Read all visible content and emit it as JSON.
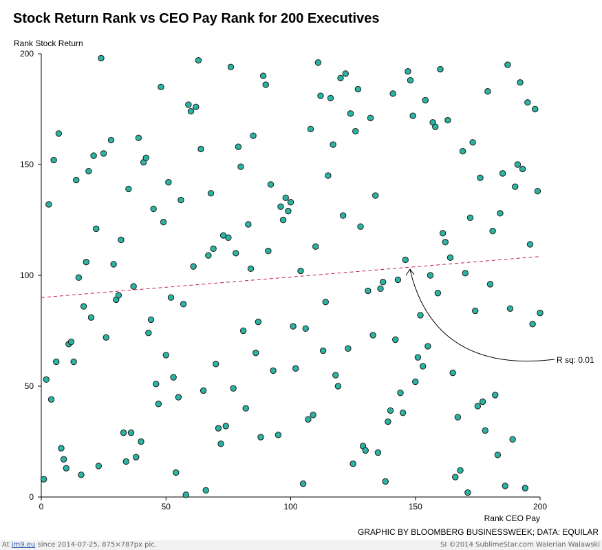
{
  "chart_data": {
    "type": "scatter",
    "title": "Stock Return Rank vs CEO Pay Rank for 200 Executives",
    "xlabel": "Rank CEO Pay",
    "ylabel": "Rank Stock Return",
    "xlim": [
      0,
      200
    ],
    "ylim": [
      0,
      200
    ],
    "xticks": [
      "0",
      "50",
      "100",
      "150",
      "200"
    ],
    "yticks": [
      "0",
      "50",
      "100",
      "150",
      "200"
    ],
    "grid": false,
    "point_color": "#2bb3a3",
    "trendline": {
      "x": [
        0,
        200
      ],
      "y": [
        90,
        108.5
      ],
      "color": "#c2185b",
      "style": "dashed"
    },
    "annotation": {
      "text": "R sq: 0.01",
      "x": 148,
      "y": 103
    },
    "points": [
      [
        1,
        8
      ],
      [
        2,
        53
      ],
      [
        3,
        132
      ],
      [
        4,
        44
      ],
      [
        5,
        152
      ],
      [
        6,
        61
      ],
      [
        7,
        164
      ],
      [
        8,
        22
      ],
      [
        9,
        17
      ],
      [
        10,
        13
      ],
      [
        11,
        69
      ],
      [
        12,
        70
      ],
      [
        13,
        61
      ],
      [
        14,
        143
      ],
      [
        15,
        99
      ],
      [
        16,
        10
      ],
      [
        17,
        86
      ],
      [
        18,
        106
      ],
      [
        19,
        147
      ],
      [
        20,
        81
      ],
      [
        21,
        154
      ],
      [
        22,
        121
      ],
      [
        23,
        14
      ],
      [
        24,
        198
      ],
      [
        25,
        155
      ],
      [
        26,
        72
      ],
      [
        28,
        161
      ],
      [
        29,
        105
      ],
      [
        30,
        89
      ],
      [
        31,
        91
      ],
      [
        32,
        116
      ],
      [
        33,
        29
      ],
      [
        34,
        16
      ],
      [
        35,
        139
      ],
      [
        36,
        29
      ],
      [
        37,
        95
      ],
      [
        38,
        18
      ],
      [
        39,
        162
      ],
      [
        40,
        25
      ],
      [
        41,
        151
      ],
      [
        42,
        153
      ],
      [
        43,
        74
      ],
      [
        44,
        80
      ],
      [
        45,
        130
      ],
      [
        46,
        51
      ],
      [
        47,
        42
      ],
      [
        48,
        185
      ],
      [
        49,
        124
      ],
      [
        50,
        64
      ],
      [
        51,
        142
      ],
      [
        52,
        90
      ],
      [
        53,
        54
      ],
      [
        54,
        11
      ],
      [
        55,
        45
      ],
      [
        56,
        134
      ],
      [
        57,
        87
      ],
      [
        58,
        1
      ],
      [
        59,
        177
      ],
      [
        60,
        174
      ],
      [
        61,
        104
      ],
      [
        62,
        176
      ],
      [
        63,
        197
      ],
      [
        64,
        157
      ],
      [
        65,
        48
      ],
      [
        66,
        3
      ],
      [
        67,
        109
      ],
      [
        68,
        137
      ],
      [
        69,
        112
      ],
      [
        70,
        60
      ],
      [
        71,
        31
      ],
      [
        72,
        24
      ],
      [
        73,
        118
      ],
      [
        74,
        32
      ],
      [
        75,
        117
      ],
      [
        76,
        194
      ],
      [
        77,
        49
      ],
      [
        78,
        110
      ],
      [
        79,
        158
      ],
      [
        80,
        149
      ],
      [
        81,
        75
      ],
      [
        82,
        40
      ],
      [
        83,
        123
      ],
      [
        84,
        103
      ],
      [
        85,
        163
      ],
      [
        86,
        65
      ],
      [
        87,
        79
      ],
      [
        88,
        27
      ],
      [
        89,
        190
      ],
      [
        90,
        186
      ],
      [
        91,
        111
      ],
      [
        92,
        141
      ],
      [
        93,
        57
      ],
      [
        95,
        28
      ],
      [
        96,
        131
      ],
      [
        97,
        125
      ],
      [
        98,
        135
      ],
      [
        99,
        129
      ],
      [
        100,
        133
      ],
      [
        101,
        77
      ],
      [
        102,
        58
      ],
      [
        104,
        102
      ],
      [
        105,
        6
      ],
      [
        106,
        76
      ],
      [
        107,
        35
      ],
      [
        108,
        166
      ],
      [
        109,
        37
      ],
      [
        110,
        113
      ],
      [
        111,
        196
      ],
      [
        112,
        181
      ],
      [
        113,
        66
      ],
      [
        114,
        88
      ],
      [
        115,
        145
      ],
      [
        116,
        180
      ],
      [
        117,
        159
      ],
      [
        118,
        55
      ],
      [
        119,
        50
      ],
      [
        120,
        189
      ],
      [
        121,
        127
      ],
      [
        122,
        191
      ],
      [
        123,
        67
      ],
      [
        124,
        173
      ],
      [
        125,
        15
      ],
      [
        126,
        165
      ],
      [
        127,
        184
      ],
      [
        128,
        122
      ],
      [
        129,
        23
      ],
      [
        130,
        21
      ],
      [
        131,
        93
      ],
      [
        132,
        171
      ],
      [
        133,
        73
      ],
      [
        134,
        136
      ],
      [
        135,
        20
      ],
      [
        136,
        94
      ],
      [
        137,
        97
      ],
      [
        138,
        7
      ],
      [
        139,
        34
      ],
      [
        140,
        39
      ],
      [
        141,
        182
      ],
      [
        142,
        71
      ],
      [
        143,
        98
      ],
      [
        144,
        47
      ],
      [
        145,
        38
      ],
      [
        146,
        107
      ],
      [
        147,
        192
      ],
      [
        148,
        188
      ],
      [
        149,
        172
      ],
      [
        150,
        52
      ],
      [
        151,
        63
      ],
      [
        152,
        82
      ],
      [
        153,
        59
      ],
      [
        154,
        179
      ],
      [
        155,
        68
      ],
      [
        156,
        100
      ],
      [
        157,
        169
      ],
      [
        158,
        167
      ],
      [
        159,
        92
      ],
      [
        160,
        193
      ],
      [
        161,
        119
      ],
      [
        162,
        115
      ],
      [
        163,
        170
      ],
      [
        164,
        108
      ],
      [
        165,
        56
      ],
      [
        166,
        9
      ],
      [
        167,
        36
      ],
      [
        168,
        12
      ],
      [
        169,
        156
      ],
      [
        170,
        101
      ],
      [
        171,
        2
      ],
      [
        172,
        126
      ],
      [
        173,
        160
      ],
      [
        174,
        84
      ],
      [
        175,
        41
      ],
      [
        176,
        144
      ],
      [
        177,
        43
      ],
      [
        178,
        30
      ],
      [
        179,
        183
      ],
      [
        180,
        96
      ],
      [
        181,
        120
      ],
      [
        182,
        46
      ],
      [
        183,
        19
      ],
      [
        184,
        128
      ],
      [
        185,
        146
      ],
      [
        186,
        5
      ],
      [
        187,
        195
      ],
      [
        188,
        85
      ],
      [
        189,
        26
      ],
      [
        190,
        140
      ],
      [
        191,
        150
      ],
      [
        192,
        187
      ],
      [
        193,
        148
      ],
      [
        194,
        4
      ],
      [
        195,
        178
      ],
      [
        196,
        114
      ],
      [
        197,
        78
      ],
      [
        198,
        175
      ],
      [
        199,
        138
      ],
      [
        200,
        83
      ]
    ]
  },
  "source_note": "GRAPHIC BY BLOOMBERG BUSINESSWEEK; DATA: EQUILAR",
  "footer": {
    "left_prefix": "At ",
    "left_link": "im9.eu",
    "left_suffix": " since 2014-07-25, 875×787px pic.",
    "right": "SI ©2014 SublimeStar.com Walerian Walawski"
  }
}
